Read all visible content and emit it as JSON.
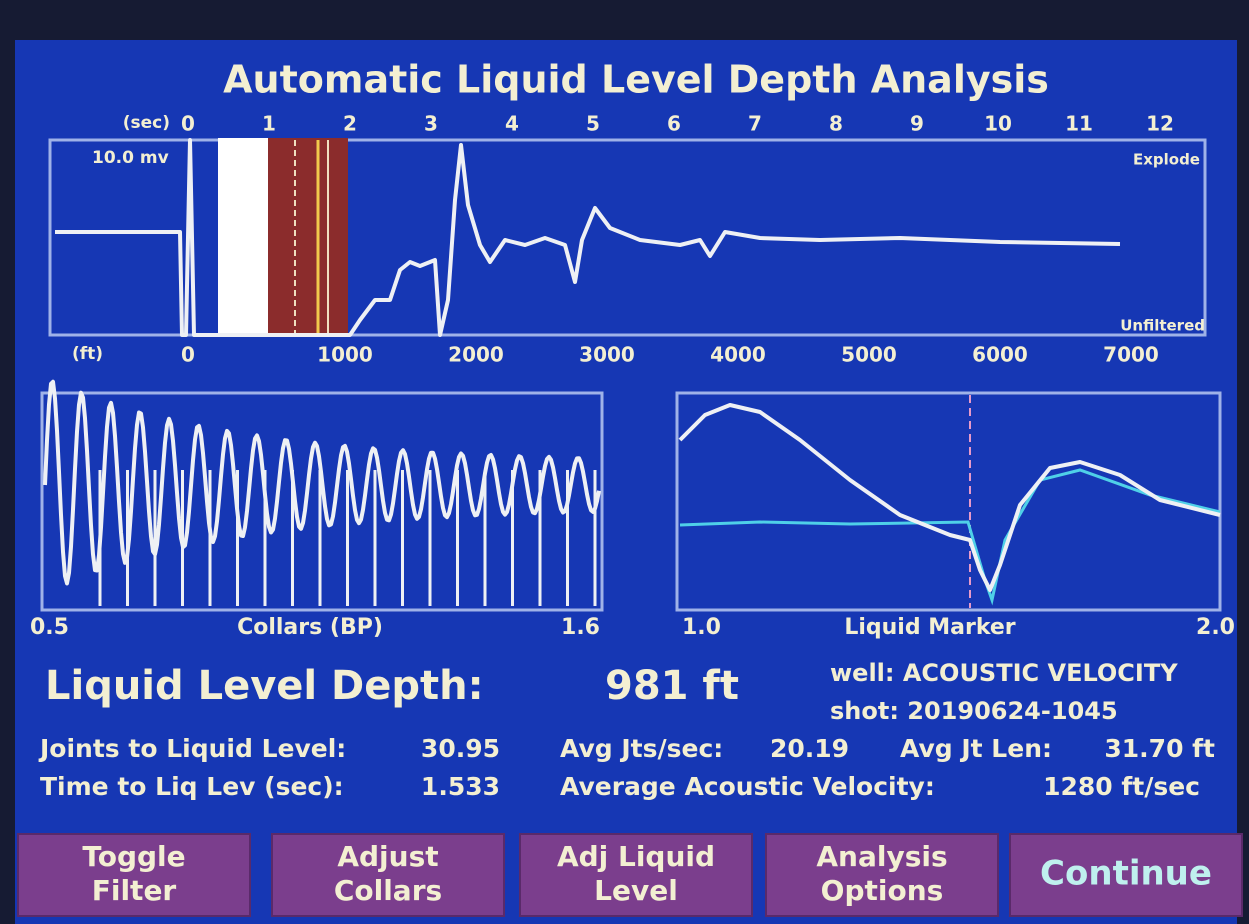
{
  "title": "Automatic Liquid Level Depth Analysis",
  "top_chart": {
    "time_unit": "(sec)",
    "time_ticks": [
      "0",
      "1",
      "2",
      "3",
      "4",
      "5",
      "6",
      "7",
      "8",
      "9",
      "10",
      "11",
      "12"
    ],
    "gain": "10.0 mv",
    "mode_top": "Explode",
    "depth_unit": "(ft)",
    "depth_ticks": [
      "0",
      "1000",
      "2000",
      "3000",
      "4000",
      "5000",
      "6000",
      "7000"
    ],
    "mode_bottom": "Unfiltered"
  },
  "collars_chart": {
    "x_start": "0.5",
    "label": "Collars (BP)",
    "x_end": "1.6"
  },
  "liquid_chart": {
    "x_start": "1.0",
    "label": "Liquid Marker",
    "x_end": "2.0"
  },
  "results": {
    "depth_label": "Liquid Level Depth:",
    "depth_value": "981 ft",
    "well": "well: ACOUSTIC VELOCITY",
    "shot": "shot: 20190624-1045",
    "joints_label": "Joints to Liquid Level:",
    "joints_value": "30.95",
    "time_label": "Time to Liq Lev (sec):",
    "time_value": "1.533",
    "jts_sec_label": "Avg Jts/sec:",
    "jts_sec_value": "20.19",
    "jt_len_label": "Avg Jt Len:",
    "jt_len_value": "31.70 ft",
    "velocity_label": "Average Acoustic Velocity:",
    "velocity_value": "1280 ft/sec"
  },
  "buttons": [
    {
      "lines": [
        "Toggle",
        "Filter"
      ]
    },
    {
      "lines": [
        "Adjust",
        "Collars"
      ]
    },
    {
      "lines": [
        "Adj Liquid",
        "Level"
      ]
    },
    {
      "lines": [
        "Analysis",
        "Options"
      ]
    },
    {
      "lines": [
        "Continue"
      ]
    }
  ]
}
